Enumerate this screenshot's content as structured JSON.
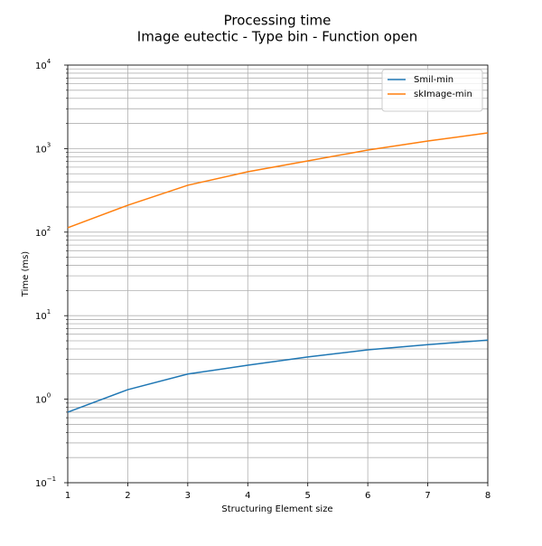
{
  "chart_data": {
    "type": "line",
    "title": "Processing time",
    "subtitle": "Image eutectic - Type bin - Function open",
    "x_label": "Structuring Element size",
    "y_label": "Time (ms)",
    "x": [
      1,
      2,
      3,
      4,
      5,
      6,
      7,
      8
    ],
    "series": [
      {
        "name": "Smil-min",
        "color": "#1f77b4",
        "values": [
          0.7,
          1.3,
          2.0,
          2.55,
          3.2,
          3.9,
          4.5,
          5.1
        ]
      },
      {
        "name": "skImage-min",
        "color": "#ff7f0e",
        "values": [
          113,
          210,
          364,
          528,
          713,
          961,
          1233,
          1542
        ]
      }
    ],
    "xlim": [
      1,
      8
    ],
    "xticks": [
      1,
      2,
      3,
      4,
      5,
      6,
      7,
      8
    ],
    "ylim": [
      0.1,
      10000
    ],
    "y_scale": "log",
    "yticks": [
      {
        "value": 0.1,
        "label": "10",
        "exponent": "−1"
      },
      {
        "value": 1,
        "label": "10",
        "exponent": "0"
      },
      {
        "value": 10,
        "label": "10",
        "exponent": "1"
      },
      {
        "value": 100,
        "label": "10",
        "exponent": "2"
      },
      {
        "value": 1000,
        "label": "10",
        "exponent": "3"
      },
      {
        "value": 10000,
        "label": "10",
        "exponent": "4"
      }
    ],
    "grid": true,
    "minor_grid": true,
    "legend": "upper right"
  }
}
